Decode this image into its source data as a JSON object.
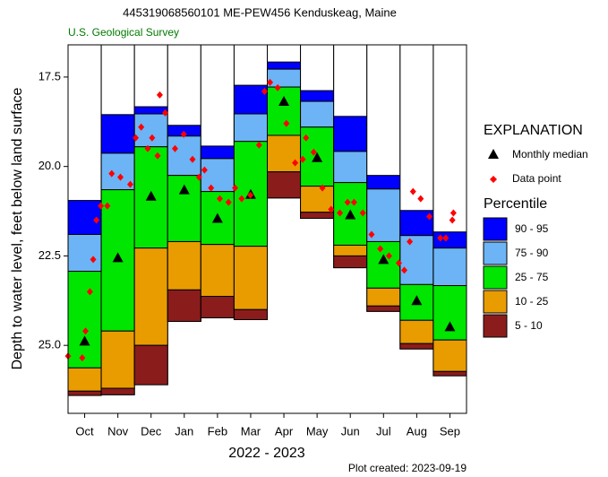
{
  "chart_data": {
    "type": "percentile",
    "title": "445319068560101 ME-PEW456 Kenduskeag, Maine",
    "subtitle": "U.S. Geological Survey",
    "ylabel": "Depth to water level, feet below land surface",
    "xlabel": "2022 - 2023",
    "footer": "Plot created: 2023-09-19",
    "legend_title": "EXPLANATION",
    "percentile_title": "Percentile",
    "categories": [
      "Oct",
      "Nov",
      "Dec",
      "Jan",
      "Feb",
      "Mar",
      "Apr",
      "May",
      "Jun",
      "Jul",
      "Aug",
      "Sep"
    ],
    "ylim": [
      16.6,
      26.9
    ],
    "y_inverted": true,
    "yticks": [
      17.5,
      {
        "value": 20,
        "label": "20.0"
      },
      22.5,
      {
        "value": 25,
        "label": "25.0"
      }
    ],
    "xlim": [
      0,
      365
    ],
    "bands": [
      {
        "name": "90 - 95",
        "color": "#0000ff",
        "values": [
          20.95,
          18.55,
          18.33,
          18.85,
          19.43,
          17.73,
          17.08,
          17.88,
          18.6,
          20.25,
          21.23,
          21.83
        ]
      },
      {
        "name": "75 - 90",
        "color": "#6cb4f5",
        "values": [
          21.9,
          19.63,
          18.53,
          19.15,
          19.78,
          18.53,
          17.28,
          18.18,
          19.58,
          20.63,
          21.93,
          22.28
        ]
      },
      {
        "name": "25 - 75",
        "color": "#00e600",
        "values": [
          22.93,
          20.65,
          19.45,
          20.25,
          20.7,
          19.3,
          17.78,
          18.9,
          20.45,
          22.1,
          23.3,
          23.33
        ]
      },
      {
        "name": "10 - 25",
        "color": "#e89c00",
        "values": [
          25.63,
          24.6,
          22.28,
          22.1,
          22.18,
          22.23,
          19.13,
          20.55,
          22.2,
          23.4,
          24.3,
          24.85
        ]
      },
      {
        "name": "5 - 10",
        "color": "#8b1c1c",
        "values": [
          26.28,
          26.2,
          25.0,
          23.45,
          23.63,
          24.0,
          20.15,
          21.28,
          22.5,
          23.9,
          24.95,
          25.73
        ]
      }
    ],
    "lowest_edge": [
      26.4,
      26.38,
      26.1,
      24.33,
      24.23,
      24.28,
      20.88,
      21.45,
      22.83,
      24.05,
      25.1,
      25.85
    ],
    "median": {
      "name": "Monthly median",
      "color": "#000000",
      "values": [
        24.88,
        22.55,
        20.83,
        20.65,
        21.45,
        20.78,
        18.18,
        19.75,
        21.35,
        22.6,
        23.75,
        24.48
      ]
    },
    "points": {
      "name": "Data point",
      "color": "#ff0000",
      "x": [
        0,
        13,
        16,
        20,
        23,
        26,
        30,
        36,
        40,
        48,
        57,
        62,
        67,
        73,
        77,
        82,
        84,
        89,
        98,
        106,
        114,
        120,
        125,
        131,
        139,
        147,
        153,
        159,
        167,
        175,
        180,
        185,
        192,
        200,
        208,
        215,
        218,
        225,
        233,
        241,
        249,
        256,
        262,
        270,
        278,
        286,
        294,
        303,
        308,
        313,
        316,
        323,
        331,
        341,
        346,
        352,
        353
      ],
      "values": [
        25.3,
        25.35,
        24.6,
        23.5,
        22.6,
        21.5,
        21.1,
        21.1,
        20.2,
        20.3,
        20.5,
        19.2,
        18.9,
        19.5,
        19.2,
        19.7,
        18.0,
        18.5,
        19.5,
        19.1,
        19.8,
        20.3,
        20.1,
        20.6,
        20.9,
        21.0,
        20.6,
        20.9,
        20.8,
        19.4,
        17.9,
        17.65,
        17.8,
        18.8,
        19.9,
        19.8,
        19.2,
        19.6,
        20.6,
        21.2,
        21.3,
        21.0,
        21.0,
        21.3,
        21.9,
        22.3,
        22.5,
        22.7,
        22.9,
        22.1,
        20.7,
        20.9,
        21.4,
        22.0,
        22.0,
        21.5,
        21.3
      ]
    }
  }
}
